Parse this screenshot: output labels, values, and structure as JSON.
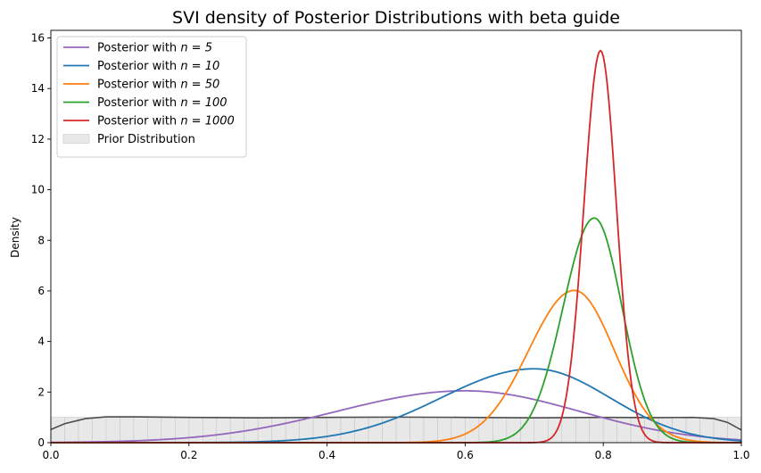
{
  "chart_data": {
    "type": "line",
    "title": "SVI density of Posterior Distributions with beta guide",
    "xlabel": "",
    "ylabel": "Density",
    "xlim": [
      0.0,
      1.0
    ],
    "ylim": [
      0,
      16.3
    ],
    "x_ticks": [
      "0.0",
      "0.2",
      "0.4",
      "0.6",
      "0.8",
      "1.0"
    ],
    "y_ticks": [
      "0",
      "2",
      "4",
      "6",
      "8",
      "10",
      "12",
      "14",
      "16"
    ],
    "grid": false,
    "legend_position": "upper-left",
    "series": [
      {
        "name": "Posterior with n = 5",
        "legend_prefix": "Posterior with ",
        "legend_math": "n = 5",
        "color": "#9467bd",
        "mode": 0.6,
        "peak": 2.05,
        "left_width": 0.185,
        "right_width": 0.165
      },
      {
        "name": "Posterior with n = 10",
        "legend_prefix": "Posterior with ",
        "legend_math": "n = 10",
        "color": "#1f77b4",
        "mode": 0.7,
        "peak": 2.92,
        "left_width": 0.135,
        "right_width": 0.11
      },
      {
        "name": "Posterior with n = 50",
        "legend_prefix": "Posterior with ",
        "legend_math": "n = 50",
        "color": "#ff7f0e",
        "mode": 0.758,
        "peak": 6.02,
        "left_width": 0.066,
        "right_width": 0.058
      },
      {
        "name": "Posterior with n = 100",
        "legend_prefix": "Posterior with ",
        "legend_math": "n = 100",
        "color": "#2ca02c",
        "mode": 0.787,
        "peak": 8.88,
        "left_width": 0.045,
        "right_width": 0.04
      },
      {
        "name": "Posterior with n = 1000",
        "legend_prefix": "Posterior with ",
        "legend_math": "n = 1000",
        "color": "#d62728",
        "mode": 0.796,
        "peak": 15.5,
        "left_width": 0.024,
        "right_width": 0.023
      }
    ],
    "prior": {
      "name": "Prior Distribution",
      "value": 1.0,
      "fill_color": "#e8e8e8",
      "edge_color": "#c8c8c8",
      "kde_color": "#4d4d4d",
      "kde": [
        [
          0.0,
          0.52
        ],
        [
          0.02,
          0.75
        ],
        [
          0.05,
          0.95
        ],
        [
          0.08,
          1.02
        ],
        [
          0.12,
          1.02
        ],
        [
          0.2,
          1.0
        ],
        [
          0.3,
          0.98
        ],
        [
          0.4,
          1.0
        ],
        [
          0.5,
          1.01
        ],
        [
          0.6,
          1.0
        ],
        [
          0.7,
          0.98
        ],
        [
          0.8,
          1.0
        ],
        [
          0.88,
          0.99
        ],
        [
          0.93,
          1.0
        ],
        [
          0.96,
          0.95
        ],
        [
          0.98,
          0.8
        ],
        [
          1.0,
          0.5
        ]
      ]
    }
  }
}
